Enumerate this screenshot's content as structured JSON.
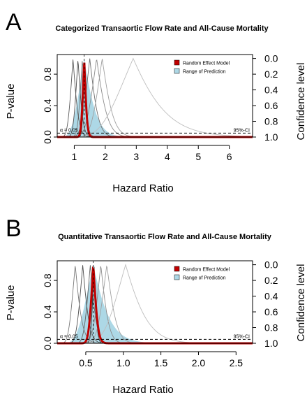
{
  "chart_data": [
    {
      "type": "line",
      "panel_label": "A",
      "title": "Categorized Transaortic Flow Rate and All-Cause Mortality",
      "xlabel": "Hazard Ratio",
      "ylabel": "P-value",
      "ylabel_right": "Confidence level",
      "xlim": [
        0.45,
        6.75
      ],
      "x_ticks": [
        "1",
        "2",
        "3",
        "4",
        "5",
        "6"
      ],
      "x_tick_values": [
        1,
        2,
        3,
        4,
        5,
        6
      ],
      "ylim": [
        0,
        1.05
      ],
      "y_ticks": [
        "0.0",
        "0.4",
        "0.8"
      ],
      "y_tick_values": [
        0,
        0.4,
        0.8
      ],
      "y_right_ticks": [
        "0.0",
        "0.2",
        "0.4",
        "0.6",
        "0.8",
        "1.0"
      ],
      "alpha_label": "α = 0.05",
      "alpha": 0.05,
      "ci_label": "95%-CI",
      "grid": false,
      "legend": {
        "placement": "top-right",
        "entries": [
          {
            "name": "Random Effect Model",
            "color": "#c00000"
          },
          {
            "name": "Range of Prediction",
            "color": "#add8e6"
          }
        ]
      },
      "pooled": {
        "estimate": 1.32,
        "lower": 1.18,
        "upper": 1.47
      },
      "prediction": {
        "estimate": 1.32,
        "lower": 0.78,
        "upper": 2.05
      },
      "studies": [
        {
          "estimate": 1.33,
          "lower": 1.22,
          "upper": 1.45,
          "gray": 0.05
        },
        {
          "estimate": 1.26,
          "lower": 1.05,
          "upper": 1.52,
          "gray": 0.45
        },
        {
          "estimate": 1.12,
          "lower": 0.9,
          "upper": 1.38,
          "gray": 0.25
        },
        {
          "estimate": 0.96,
          "lower": 0.72,
          "upper": 1.28,
          "gray": 0.3
        },
        {
          "estimate": 1.5,
          "lower": 1.12,
          "upper": 2.0,
          "gray": 0.4
        },
        {
          "estimate": 1.72,
          "lower": 1.25,
          "upper": 2.38,
          "gray": 0.55
        },
        {
          "estimate": 1.9,
          "lower": 1.4,
          "upper": 2.55,
          "gray": 0.65
        },
        {
          "estimate": 2.9,
          "lower": 1.6,
          "upper": 5.3,
          "gray": 0.8
        }
      ]
    },
    {
      "type": "line",
      "panel_label": "B",
      "title": "Quantitative Transaortic Flow Rate and All-Cause Mortality",
      "xlabel": "Hazard Ratio",
      "ylabel": "P-value",
      "ylabel_right": "Confidence level",
      "xlim": [
        0.12,
        2.72
      ],
      "x_ticks": [
        "0.5",
        "1.0",
        "1.5",
        "2.0",
        "2.5"
      ],
      "x_tick_values": [
        0.5,
        1.0,
        1.5,
        2.0,
        2.5
      ],
      "ylim": [
        0,
        1.05
      ],
      "y_ticks": [
        "0.0",
        "0.4",
        "0.8"
      ],
      "y_tick_values": [
        0,
        0.4,
        0.8
      ],
      "y_right_ticks": [
        "0.0",
        "0.2",
        "0.4",
        "0.6",
        "0.8",
        "1.0"
      ],
      "alpha_label": "α = 0.05",
      "alpha": 0.05,
      "ci_label": "95%-CI",
      "grid": false,
      "legend": {
        "placement": "top-right",
        "entries": [
          {
            "name": "Random Effect Model",
            "color": "#c00000"
          },
          {
            "name": "Range of Prediction",
            "color": "#add8e6"
          }
        ]
      },
      "pooled": {
        "estimate": 0.6,
        "lower": 0.51,
        "upper": 0.7
      },
      "prediction": {
        "estimate": 0.6,
        "lower": 0.3,
        "upper": 1.0
      },
      "studies": [
        {
          "estimate": 0.61,
          "lower": 0.55,
          "upper": 0.68,
          "gray": 0.05
        },
        {
          "estimate": 0.56,
          "lower": 0.44,
          "upper": 0.71,
          "gray": 0.35
        },
        {
          "estimate": 0.46,
          "lower": 0.34,
          "upper": 0.62,
          "gray": 0.25
        },
        {
          "estimate": 0.36,
          "lower": 0.24,
          "upper": 0.54,
          "gray": 0.45
        },
        {
          "estimate": 0.7,
          "lower": 0.55,
          "upper": 0.89,
          "gray": 0.55
        },
        {
          "estimate": 0.78,
          "lower": 0.6,
          "upper": 1.02,
          "gray": 0.65
        },
        {
          "estimate": 1.03,
          "lower": 0.65,
          "upper": 1.62,
          "gray": 0.8
        }
      ]
    }
  ]
}
